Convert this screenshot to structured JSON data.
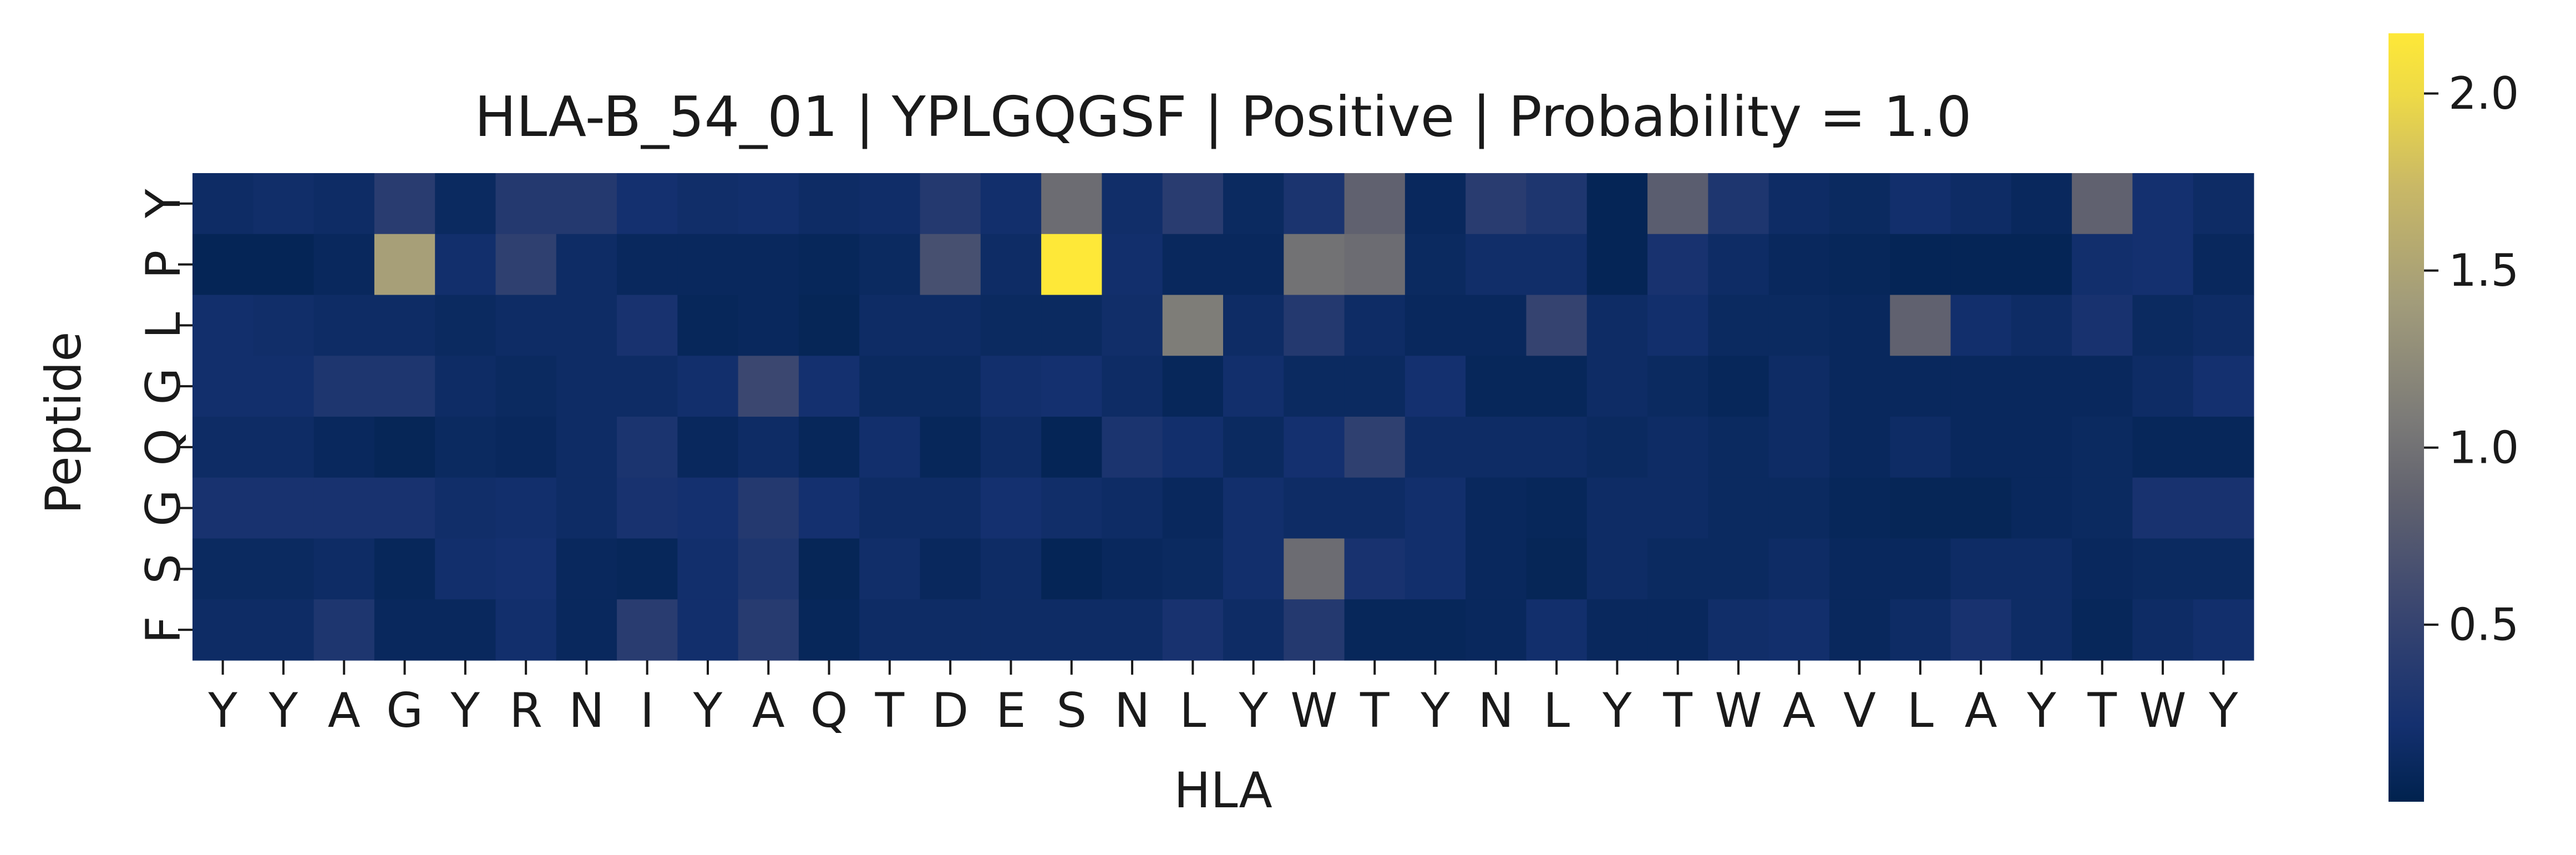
{
  "chart_data": {
    "type": "heatmap",
    "title": "HLA-B_54_01 | YPLGQGSF | Positive | Probability = 1.0",
    "xlabel": "HLA",
    "ylabel": "Peptide",
    "x_ticks": [
      "Y",
      "Y",
      "A",
      "G",
      "Y",
      "R",
      "N",
      "I",
      "Y",
      "A",
      "Q",
      "T",
      "D",
      "E",
      "S",
      "N",
      "L",
      "Y",
      "W",
      "T",
      "Y",
      "N",
      "L",
      "Y",
      "T",
      "W",
      "A",
      "V",
      "L",
      "A",
      "Y",
      "T",
      "W",
      "Y"
    ],
    "y_ticks": [
      "Y",
      "P",
      "L",
      "G",
      "Q",
      "G",
      "S",
      "F"
    ],
    "colormap": "cividis",
    "colorbar": {
      "min": 0.0,
      "max": 2.17,
      "ticks": [
        0.5,
        1.0,
        1.5,
        2.0
      ],
      "tick_labels": [
        "0.5",
        "1.0",
        "1.5",
        "2.0"
      ]
    },
    "values": [
      [
        0.15,
        0.18,
        0.15,
        0.4,
        0.12,
        0.35,
        0.35,
        0.22,
        0.18,
        0.2,
        0.15,
        0.17,
        0.35,
        0.2,
        0.95,
        0.18,
        0.4,
        0.12,
        0.28,
        0.85,
        0.1,
        0.4,
        0.3,
        0.05,
        0.8,
        0.3,
        0.15,
        0.12,
        0.2,
        0.15,
        0.1,
        0.85,
        0.22,
        0.15
      ],
      [
        0.05,
        0.05,
        0.1,
        1.45,
        0.2,
        0.45,
        0.15,
        0.1,
        0.1,
        0.1,
        0.08,
        0.12,
        0.65,
        0.15,
        2.17,
        0.2,
        0.1,
        0.1,
        1.0,
        0.95,
        0.12,
        0.18,
        0.18,
        0.05,
        0.25,
        0.15,
        0.1,
        0.08,
        0.05,
        0.05,
        0.05,
        0.2,
        0.22,
        0.1
      ],
      [
        0.2,
        0.18,
        0.15,
        0.15,
        0.12,
        0.15,
        0.15,
        0.25,
        0.08,
        0.1,
        0.06,
        0.15,
        0.15,
        0.12,
        0.12,
        0.18,
        1.1,
        0.15,
        0.35,
        0.15,
        0.1,
        0.1,
        0.5,
        0.15,
        0.2,
        0.12,
        0.12,
        0.1,
        0.85,
        0.2,
        0.15,
        0.25,
        0.12,
        0.15
      ],
      [
        0.2,
        0.2,
        0.3,
        0.3,
        0.15,
        0.12,
        0.15,
        0.15,
        0.2,
        0.55,
        0.22,
        0.12,
        0.12,
        0.2,
        0.22,
        0.15,
        0.08,
        0.2,
        0.12,
        0.12,
        0.22,
        0.08,
        0.08,
        0.15,
        0.12,
        0.08,
        0.15,
        0.1,
        0.1,
        0.1,
        0.1,
        0.1,
        0.15,
        0.22
      ],
      [
        0.15,
        0.15,
        0.1,
        0.06,
        0.12,
        0.1,
        0.15,
        0.28,
        0.1,
        0.15,
        0.08,
        0.2,
        0.08,
        0.15,
        0.05,
        0.28,
        0.2,
        0.12,
        0.22,
        0.45,
        0.15,
        0.15,
        0.15,
        0.12,
        0.15,
        0.12,
        0.15,
        0.1,
        0.15,
        0.1,
        0.1,
        0.12,
        0.08,
        0.08
      ],
      [
        0.25,
        0.25,
        0.25,
        0.25,
        0.18,
        0.2,
        0.15,
        0.25,
        0.22,
        0.35,
        0.22,
        0.15,
        0.15,
        0.22,
        0.18,
        0.15,
        0.1,
        0.2,
        0.15,
        0.15,
        0.2,
        0.1,
        0.08,
        0.15,
        0.15,
        0.12,
        0.12,
        0.08,
        0.06,
        0.06,
        0.1,
        0.12,
        0.25,
        0.25
      ],
      [
        0.12,
        0.12,
        0.15,
        0.08,
        0.2,
        0.22,
        0.1,
        0.08,
        0.2,
        0.3,
        0.06,
        0.18,
        0.1,
        0.15,
        0.05,
        0.1,
        0.12,
        0.2,
        0.95,
        0.25,
        0.2,
        0.1,
        0.06,
        0.15,
        0.12,
        0.12,
        0.15,
        0.1,
        0.1,
        0.15,
        0.15,
        0.1,
        0.12,
        0.12
      ],
      [
        0.15,
        0.15,
        0.3,
        0.1,
        0.1,
        0.2,
        0.1,
        0.4,
        0.2,
        0.38,
        0.08,
        0.15,
        0.15,
        0.15,
        0.15,
        0.15,
        0.25,
        0.15,
        0.35,
        0.08,
        0.08,
        0.1,
        0.2,
        0.1,
        0.1,
        0.18,
        0.2,
        0.1,
        0.15,
        0.25,
        0.15,
        0.08,
        0.15,
        0.2
      ]
    ]
  }
}
